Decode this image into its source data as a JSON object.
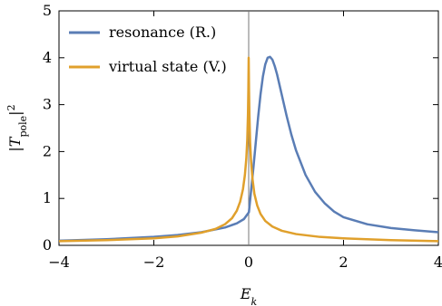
{
  "chart_data": {
    "type": "line",
    "title": "",
    "xlabel": "E_k",
    "ylabel": "|T_pole|^2",
    "xlim": [
      -4,
      4
    ],
    "ylim": [
      0,
      5
    ],
    "x_ticks": [
      "−4",
      "−2",
      "0",
      "2",
      "4"
    ],
    "y_ticks": [
      "0",
      "1",
      "2",
      "3",
      "4",
      "5"
    ],
    "grid": false,
    "legend_position": "top-left",
    "vertical_reference_line_x": 0,
    "series": [
      {
        "name": "resonance (R.)",
        "color": "#5a7db5",
        "x": [
          -4,
          -3,
          -2,
          -1.5,
          -1,
          -0.5,
          -0.25,
          -0.1,
          0,
          0.005,
          0.02,
          0.05,
          0.1,
          0.15,
          0.2,
          0.25,
          0.3,
          0.35,
          0.4,
          0.45,
          0.5,
          0.55,
          0.6,
          0.65,
          0.7,
          0.8,
          0.9,
          1,
          1.2,
          1.4,
          1.6,
          1.8,
          2,
          2.5,
          3,
          3.5,
          4
        ],
        "y": [
          0.1,
          0.13,
          0.18,
          0.22,
          0.28,
          0.38,
          0.47,
          0.56,
          0.7,
          0.71,
          0.86,
          1.16,
          1.66,
          2.2,
          2.74,
          3.22,
          3.6,
          3.86,
          4.0,
          4.02,
          3.96,
          3.82,
          3.64,
          3.42,
          3.2,
          2.76,
          2.36,
          2.02,
          1.5,
          1.14,
          0.9,
          0.72,
          0.6,
          0.45,
          0.37,
          0.32,
          0.28
        ]
      },
      {
        "name": "virtual state (V.)",
        "color": "#e0a02c",
        "x": [
          -4,
          -3,
          -2,
          -1.5,
          -1,
          -0.7,
          -0.5,
          -0.35,
          -0.25,
          -0.18,
          -0.12,
          -0.08,
          -0.05,
          -0.03,
          -0.015,
          -0.007,
          0,
          0.007,
          0.015,
          0.03,
          0.05,
          0.08,
          0.12,
          0.18,
          0.25,
          0.35,
          0.5,
          0.7,
          1,
          1.5,
          2,
          3,
          4
        ],
        "y": [
          0.09,
          0.11,
          0.15,
          0.19,
          0.27,
          0.35,
          0.45,
          0.58,
          0.74,
          0.93,
          1.2,
          1.5,
          1.85,
          2.25,
          2.8,
          3.3,
          4.0,
          3.3,
          2.8,
          2.2,
          1.8,
          1.42,
          1.1,
          0.85,
          0.67,
          0.52,
          0.4,
          0.31,
          0.24,
          0.18,
          0.15,
          0.11,
          0.09
        ]
      }
    ]
  }
}
